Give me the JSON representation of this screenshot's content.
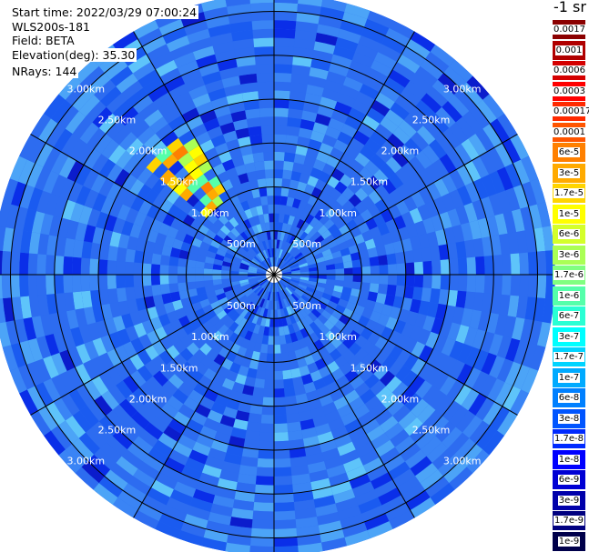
{
  "info": {
    "start_time": "Start time: 2022/03/29 07:00:24",
    "instrument": "WLS200s-181",
    "field": "Field: BETA",
    "elevation": "Elevation(deg): 35.30",
    "nrays": "NRays: 144"
  },
  "colorbar": {
    "title": "-1 sr",
    "labels": [
      "0.0017",
      "0.001",
      "0.0006",
      "0.0003",
      "0.00017",
      "0.0001",
      "6e-5",
      "3e-5",
      "1.7e-5",
      "1e-5",
      "6e-6",
      "3e-6",
      "1.7e-6",
      "1e-6",
      "6e-7",
      "3e-7",
      "1.7e-7",
      "1e-7",
      "6e-8",
      "3e-8",
      "1.7e-8",
      "1e-8",
      "6e-9",
      "3e-9",
      "1.7e-9",
      "1e-9"
    ],
    "colors": [
      "#8b0000",
      "#b00000",
      "#d40000",
      "#ff0000",
      "#ff2a00",
      "#ff5500",
      "#ff8000",
      "#ffaa00",
      "#ffd400",
      "#ffff00",
      "#d4ff2a",
      "#aaff55",
      "#80ff80",
      "#55ffaa",
      "#2affd4",
      "#00ffff",
      "#00d4ff",
      "#00aaff",
      "#0080ff",
      "#0055ff",
      "#002aff",
      "#0000ff",
      "#0000d4",
      "#0000aa",
      "#000080",
      "#00004a"
    ],
    "light_text": [
      "0.0017",
      "0.001",
      "0.0006",
      "0.0003",
      "1.7e-8",
      "1e-8",
      "6e-9",
      "3e-9",
      "1.7e-9",
      "1e-9"
    ]
  },
  "chart_data": {
    "type": "heatmap",
    "projection": "polar (PPI scan)",
    "field": "BETA",
    "unit": "-1 sr",
    "n_rays": 144,
    "elevation_deg": 35.3,
    "range_rings_km": [
      0.5,
      1.0,
      1.5,
      2.0,
      2.5,
      3.0
    ],
    "range_ring_labels": [
      "500m",
      "1.00km",
      "1.50km",
      "2.00km",
      "2.50km",
      "3.00km"
    ],
    "spoke_angles_deg": [
      0,
      30,
      60,
      90,
      120,
      150,
      180,
      210,
      240,
      270,
      300,
      330
    ],
    "max_range_km": 3.2,
    "background_level": "1e-7",
    "features": [
      {
        "azimuth_deg_range": [
          312,
          330
        ],
        "range_km": [
          1.05,
          1.85
        ],
        "beta_range": [
          "1e-5",
          "1e-4"
        ],
        "description": "high backscatter patch"
      }
    ]
  }
}
